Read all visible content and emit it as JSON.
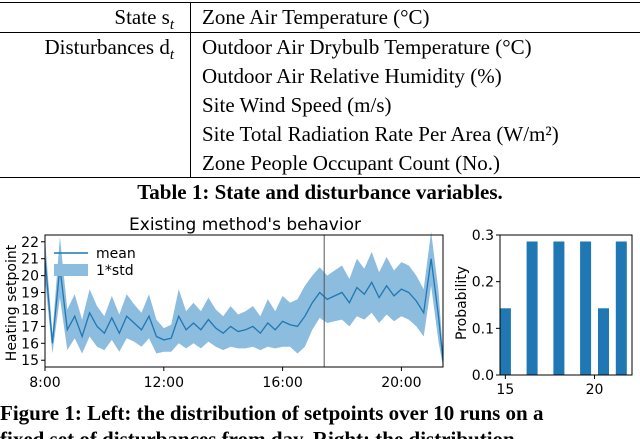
{
  "table": {
    "rows": [
      {
        "label": "State s",
        "label_sub": "t",
        "values": [
          "Zone Air Temperature (°C)"
        ]
      },
      {
        "label": "Disturbances d",
        "label_sub": "t",
        "values": [
          "Outdoor Air Drybulb Temperature (°C)",
          "Outdoor Air Relative Humidity (%)",
          "Site Wind Speed (m/s)",
          "Site Total Radiation Rate Per Area (W/m²)",
          "Zone People Occupant Count (No.)"
        ]
      }
    ],
    "caption": "Table 1: State and disturbance variables."
  },
  "chart_data": [
    {
      "type": "area",
      "title": "Existing method's behavior",
      "xlabel": "",
      "ylabel": "Heating setpoint",
      "x_ticks": [
        "8:00",
        "12:00",
        "16:00",
        "20:00"
      ],
      "x_tick_hours": [
        8,
        12,
        16,
        20
      ],
      "y_ticks": [
        15,
        16,
        17,
        18,
        19,
        20,
        21,
        22
      ],
      "ylim": [
        14.6,
        22.4
      ],
      "xlim_hours": [
        8.0,
        21.4
      ],
      "vertical_marker_hour": 17.4,
      "legend": {
        "placement": "top-left",
        "entries": [
          "mean",
          "1*std"
        ]
      },
      "series": [
        {
          "name": "mean",
          "x_hours": [
            8.0,
            8.25,
            8.5,
            8.75,
            9.0,
            9.25,
            9.5,
            9.75,
            10.0,
            10.25,
            10.5,
            10.75,
            11.0,
            11.25,
            11.5,
            11.75,
            12.0,
            12.25,
            12.5,
            12.75,
            13.0,
            13.25,
            13.5,
            13.75,
            14.0,
            14.25,
            14.5,
            14.75,
            15.0,
            15.25,
            15.5,
            15.75,
            16.0,
            16.25,
            16.5,
            16.75,
            17.0,
            17.25,
            17.5,
            17.75,
            18.0,
            18.25,
            18.5,
            18.75,
            19.0,
            19.25,
            19.5,
            19.75,
            20.0,
            20.25,
            20.5,
            20.75,
            21.0,
            21.25,
            21.4
          ],
          "values": [
            21.0,
            16.0,
            20.5,
            16.8,
            17.6,
            16.4,
            17.8,
            17.0,
            16.6,
            17.5,
            16.6,
            17.6,
            17.2,
            16.8,
            17.6,
            16.4,
            16.2,
            16.3,
            17.6,
            16.8,
            17.2,
            16.8,
            17.4,
            16.9,
            16.6,
            17.0,
            16.7,
            16.8,
            17.0,
            16.6,
            17.2,
            16.8,
            17.3,
            17.1,
            17.0,
            17.6,
            18.4,
            19.0,
            18.6,
            18.8,
            19.0,
            18.4,
            19.3,
            18.9,
            19.6,
            18.7,
            19.4,
            18.8,
            19.2,
            19.0,
            18.5,
            17.8,
            21.0,
            17.6,
            15.0
          ],
          "std": [
            1.2,
            0.6,
            1.8,
            1.2,
            1.3,
            1.0,
            1.4,
            1.2,
            1.0,
            1.3,
            1.1,
            1.3,
            1.1,
            1.0,
            1.3,
            1.0,
            0.7,
            0.8,
            1.6,
            1.1,
            1.2,
            1.1,
            1.3,
            1.1,
            1.0,
            1.2,
            1.0,
            1.1,
            1.2,
            1.0,
            1.4,
            1.1,
            1.5,
            1.3,
            1.6,
            1.8,
            1.6,
            1.5,
            1.4,
            1.5,
            1.6,
            1.4,
            1.7,
            1.5,
            1.8,
            1.5,
            1.7,
            1.5,
            1.6,
            1.6,
            1.5,
            1.4,
            1.6,
            1.5,
            0.4
          ]
        }
      ]
    },
    {
      "type": "bar",
      "title": "",
      "xlabel": "",
      "ylabel": "Probability",
      "x": [
        15,
        16.5,
        18,
        19.5,
        20.5,
        21.5
      ],
      "values": [
        0.143,
        0.286,
        0.286,
        0.286,
        0.143,
        0.286
      ],
      "x_ticks": [
        15,
        20
      ],
      "y_ticks": [
        "0.0",
        "0.1",
        "0.2",
        "0.3"
      ],
      "ylim": [
        0,
        0.3
      ],
      "xlim": [
        14.7,
        22.1
      ]
    }
  ],
  "figure_caption": {
    "line1": "Figure 1: Left: the distribution of setpoints over 10 runs on a",
    "line2": "fixed set of disturbances from day. Right: the distribution"
  }
}
